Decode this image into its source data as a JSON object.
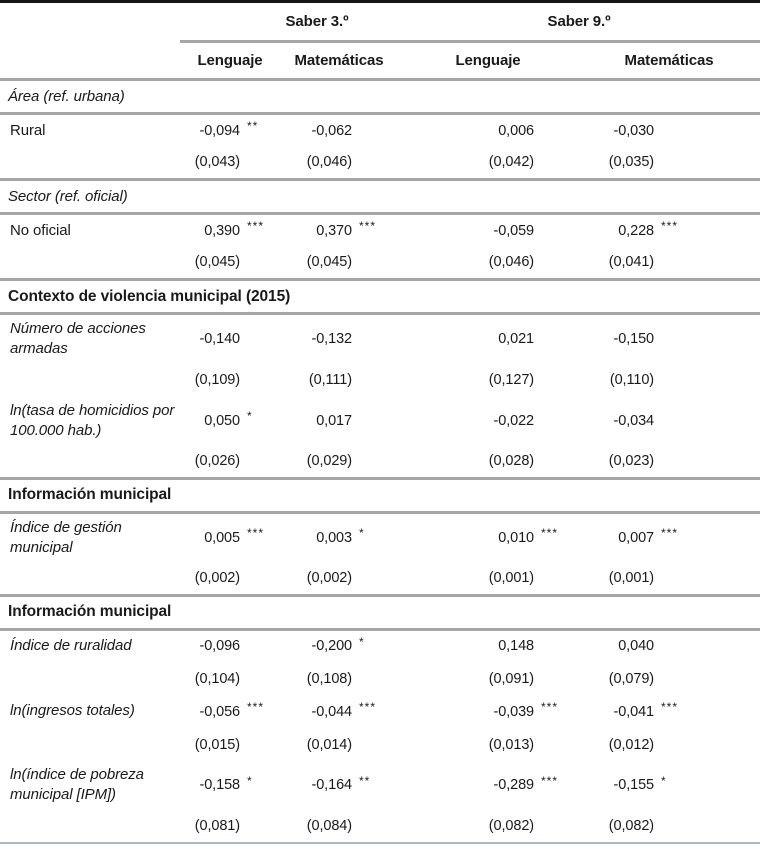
{
  "table": {
    "group_headers": [
      "Saber 3.º",
      "Saber 9.º"
    ],
    "column_headers": [
      "Lenguaje",
      "Matemáticas",
      "Lenguaje",
      "Matemáticas"
    ],
    "rows": [
      {
        "type": "section",
        "style": "italic",
        "label": "Área (ref. urbana)"
      },
      {
        "type": "coef",
        "style": "normal",
        "label": "Rural",
        "values": [
          "-0,094",
          "-0,062",
          "0,006",
          "-0,030"
        ],
        "stars": [
          "**",
          "",
          "",
          ""
        ],
        "se": [
          "(0,043)",
          "(0,046)",
          "(0,042)",
          "(0,035)"
        ]
      },
      {
        "type": "section",
        "style": "italic",
        "label": "Sector (ref. oficial)"
      },
      {
        "type": "coef",
        "style": "normal",
        "label": "No oficial",
        "values": [
          "0,390",
          "0,370",
          "-0,059",
          "0,228"
        ],
        "stars": [
          "***",
          "***",
          "",
          "***"
        ],
        "se": [
          "(0,045)",
          "(0,045)",
          "(0,046)",
          "(0,041)"
        ]
      },
      {
        "type": "section",
        "style": "bold",
        "label": "Contexto de violencia municipal (2015)"
      },
      {
        "type": "coef",
        "style": "italic",
        "label": "Número de acciones armadas",
        "values": [
          "-0,140",
          "-0,132",
          "0,021",
          "-0,150"
        ],
        "stars": [
          "",
          "",
          "",
          ""
        ],
        "se": [
          "(0,109)",
          "(0,111)",
          "(0,127)",
          "(0,110)"
        ]
      },
      {
        "type": "coef",
        "style": "italic",
        "label": "ln(tasa de homicidios por 100.000 hab.)",
        "values": [
          "0,050",
          "0,017",
          "-0,022",
          "-0,034"
        ],
        "stars": [
          "*",
          "",
          "",
          ""
        ],
        "se": [
          "(0,026)",
          "(0,029)",
          "(0,028)",
          "(0,023)"
        ]
      },
      {
        "type": "section",
        "style": "bold",
        "label": "Información municipal"
      },
      {
        "type": "coef",
        "style": "italic",
        "label": "Índice de gestión municipal",
        "values": [
          "0,005",
          "0,003",
          "0,010",
          "0,007"
        ],
        "stars": [
          "***",
          "*",
          "***",
          "***"
        ],
        "se": [
          "(0,002)",
          "(0,002)",
          "(0,001)",
          "(0,001)"
        ]
      },
      {
        "type": "section",
        "style": "bold",
        "label": "Información municipal"
      },
      {
        "type": "coef",
        "style": "italic",
        "label": "Índice de ruralidad",
        "values": [
          "-0,096",
          "-0,200",
          "0,148",
          "0,040"
        ],
        "stars": [
          "",
          "*",
          "",
          ""
        ],
        "se": [
          "(0,104)",
          "(0,108)",
          "(0,091)",
          "(0,079)"
        ]
      },
      {
        "type": "coef",
        "style": "italic",
        "label": "ln(ingresos totales)",
        "values": [
          "-0,056",
          "-0,044",
          "-0,039",
          "-0,041"
        ],
        "stars": [
          "***",
          "***",
          "***",
          "***"
        ],
        "se": [
          "(0,015)",
          "(0,014)",
          "(0,013)",
          "(0,012)"
        ]
      },
      {
        "type": "coef",
        "style": "italic",
        "label": "ln(índice de pobreza municipal [IPM])",
        "values": [
          "-0,158",
          "-0,164",
          "-0,289",
          "-0,155"
        ],
        "stars": [
          "*",
          "**",
          "***",
          "*"
        ],
        "se": [
          "(0,081)",
          "(0,084)",
          "(0,082)",
          "(0,082)"
        ]
      }
    ]
  },
  "colors": {
    "rule_gray": "#a6a6a6",
    "top_border": "#161616",
    "bottom_border": "#a4bac7",
    "text": "#1a1a1a",
    "background": "#ffffff"
  }
}
